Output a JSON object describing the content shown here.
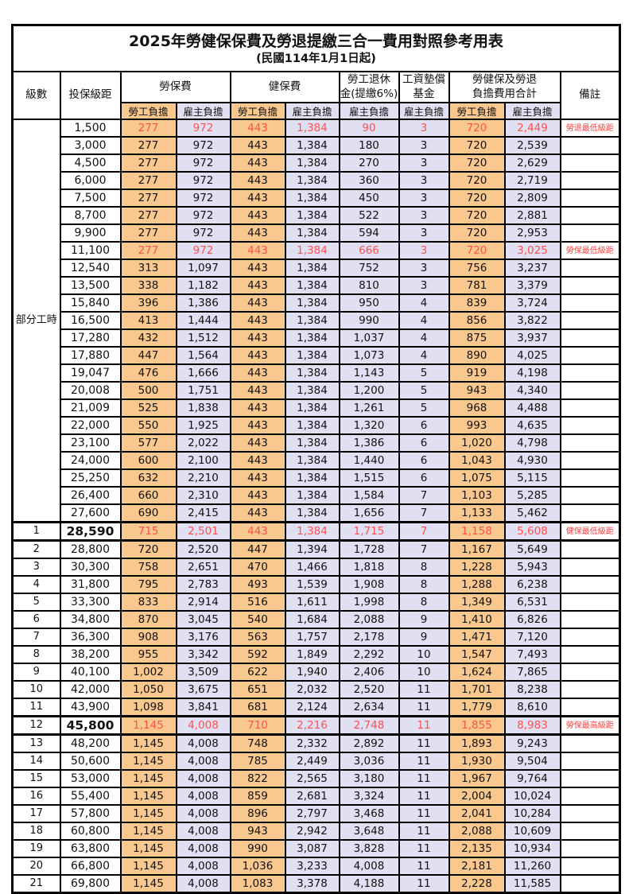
{
  "title": "2025年勞健保保費及勞退提繳三合一費用對照參考用表",
  "subtitle": "(民國114年1月1日起)",
  "header": {
    "level": "級數",
    "bracket": "投保級距",
    "labor_ins": "勞保費",
    "health_ins": "健保費",
    "pension": "勞工退休\n金(提繳6%)",
    "wage_fund": "工資墊償\n基金",
    "total": "勞健保及勞退\n負擔費用合計",
    "employee": "勞工負擔",
    "employer": "雇主負擔",
    "remark": "備註"
  },
  "part_time_label": "部分工時",
  "part_time_rowspan": 23,
  "colors": {
    "employee_bg": "#F8C88E",
    "employer_bg": "#E0E0F2",
    "highlight_red": "#FF5050",
    "remark_red": "#FF4040",
    "border": "#000000"
  },
  "rows": [
    {
      "level": null,
      "bracket": "1,500",
      "values": [
        "277",
        "972",
        "443",
        "1,384",
        "90",
        "3",
        "720",
        "2,449"
      ],
      "remark": "勞退最低級距",
      "red": true,
      "bold": false,
      "thick": false
    },
    {
      "level": null,
      "bracket": "3,000",
      "values": [
        "277",
        "972",
        "443",
        "1,384",
        "180",
        "3",
        "720",
        "2,539"
      ],
      "remark": "",
      "red": false,
      "bold": false,
      "thick": false
    },
    {
      "level": null,
      "bracket": "4,500",
      "values": [
        "277",
        "972",
        "443",
        "1,384",
        "270",
        "3",
        "720",
        "2,629"
      ],
      "remark": "",
      "red": false,
      "bold": false,
      "thick": false
    },
    {
      "level": null,
      "bracket": "6,000",
      "values": [
        "277",
        "972",
        "443",
        "1,384",
        "360",
        "3",
        "720",
        "2,719"
      ],
      "remark": "",
      "red": false,
      "bold": false,
      "thick": false
    },
    {
      "level": null,
      "bracket": "7,500",
      "values": [
        "277",
        "972",
        "443",
        "1,384",
        "450",
        "3",
        "720",
        "2,809"
      ],
      "remark": "",
      "red": false,
      "bold": false,
      "thick": false
    },
    {
      "level": null,
      "bracket": "8,700",
      "values": [
        "277",
        "972",
        "443",
        "1,384",
        "522",
        "3",
        "720",
        "2,881"
      ],
      "remark": "",
      "red": false,
      "bold": false,
      "thick": false
    },
    {
      "level": null,
      "bracket": "9,900",
      "values": [
        "277",
        "972",
        "443",
        "1,384",
        "594",
        "3",
        "720",
        "2,953"
      ],
      "remark": "",
      "red": false,
      "bold": false,
      "thick": false
    },
    {
      "level": null,
      "bracket": "11,100",
      "values": [
        "277",
        "972",
        "443",
        "1,384",
        "666",
        "3",
        "720",
        "3,025"
      ],
      "remark": "勞保最低級距",
      "red": true,
      "bold": false,
      "thick": false
    },
    {
      "level": null,
      "bracket": "12,540",
      "values": [
        "313",
        "1,097",
        "443",
        "1,384",
        "752",
        "3",
        "756",
        "3,237"
      ],
      "remark": "",
      "red": false,
      "bold": false,
      "thick": false
    },
    {
      "level": null,
      "bracket": "13,500",
      "values": [
        "338",
        "1,182",
        "443",
        "1,384",
        "810",
        "3",
        "781",
        "3,379"
      ],
      "remark": "",
      "red": false,
      "bold": false,
      "thick": false
    },
    {
      "level": null,
      "bracket": "15,840",
      "values": [
        "396",
        "1,386",
        "443",
        "1,384",
        "950",
        "4",
        "839",
        "3,724"
      ],
      "remark": "",
      "red": false,
      "bold": false,
      "thick": false
    },
    {
      "level": null,
      "bracket": "16,500",
      "values": [
        "413",
        "1,444",
        "443",
        "1,384",
        "990",
        "4",
        "856",
        "3,822"
      ],
      "remark": "",
      "red": false,
      "bold": false,
      "thick": false
    },
    {
      "level": null,
      "bracket": "17,280",
      "values": [
        "432",
        "1,512",
        "443",
        "1,384",
        "1,037",
        "4",
        "875",
        "3,937"
      ],
      "remark": "",
      "red": false,
      "bold": false,
      "thick": false
    },
    {
      "level": null,
      "bracket": "17,880",
      "values": [
        "447",
        "1,564",
        "443",
        "1,384",
        "1,073",
        "4",
        "890",
        "4,025"
      ],
      "remark": "",
      "red": false,
      "bold": false,
      "thick": false
    },
    {
      "level": null,
      "bracket": "19,047",
      "values": [
        "476",
        "1,666",
        "443",
        "1,384",
        "1,143",
        "5",
        "919",
        "4,198"
      ],
      "remark": "",
      "red": false,
      "bold": false,
      "thick": false
    },
    {
      "level": null,
      "bracket": "20,008",
      "values": [
        "500",
        "1,751",
        "443",
        "1,384",
        "1,200",
        "5",
        "943",
        "4,340"
      ],
      "remark": "",
      "red": false,
      "bold": false,
      "thick": false
    },
    {
      "level": null,
      "bracket": "21,009",
      "values": [
        "525",
        "1,838",
        "443",
        "1,384",
        "1,261",
        "5",
        "968",
        "4,488"
      ],
      "remark": "",
      "red": false,
      "bold": false,
      "thick": false
    },
    {
      "level": null,
      "bracket": "22,000",
      "values": [
        "550",
        "1,925",
        "443",
        "1,384",
        "1,320",
        "6",
        "993",
        "4,635"
      ],
      "remark": "",
      "red": false,
      "bold": false,
      "thick": false
    },
    {
      "level": null,
      "bracket": "23,100",
      "values": [
        "577",
        "2,022",
        "443",
        "1,384",
        "1,386",
        "6",
        "1,020",
        "4,798"
      ],
      "remark": "",
      "red": false,
      "bold": false,
      "thick": false
    },
    {
      "level": null,
      "bracket": "24,000",
      "values": [
        "600",
        "2,100",
        "443",
        "1,384",
        "1,440",
        "6",
        "1,043",
        "4,930"
      ],
      "remark": "",
      "red": false,
      "bold": false,
      "thick": false
    },
    {
      "level": null,
      "bracket": "25,250",
      "values": [
        "632",
        "2,210",
        "443",
        "1,384",
        "1,515",
        "6",
        "1,075",
        "5,115"
      ],
      "remark": "",
      "red": false,
      "bold": false,
      "thick": false
    },
    {
      "level": null,
      "bracket": "26,400",
      "values": [
        "660",
        "2,310",
        "443",
        "1,384",
        "1,584",
        "7",
        "1,103",
        "5,285"
      ],
      "remark": "",
      "red": false,
      "bold": false,
      "thick": false
    },
    {
      "level": null,
      "bracket": "27,600",
      "values": [
        "690",
        "2,415",
        "443",
        "1,384",
        "1,656",
        "7",
        "1,133",
        "5,462"
      ],
      "remark": "",
      "red": false,
      "bold": false,
      "thick": false
    },
    {
      "level": "1",
      "bracket": "28,590",
      "values": [
        "715",
        "2,501",
        "443",
        "1,384",
        "1,715",
        "7",
        "1,158",
        "5,608"
      ],
      "remark": "健保最低級距",
      "red": true,
      "bold": true,
      "thick": true
    },
    {
      "level": "2",
      "bracket": "28,800",
      "values": [
        "720",
        "2,520",
        "447",
        "1,394",
        "1,728",
        "7",
        "1,167",
        "5,649"
      ],
      "remark": "",
      "red": false,
      "bold": false,
      "thick": false
    },
    {
      "level": "3",
      "bracket": "30,300",
      "values": [
        "758",
        "2,651",
        "470",
        "1,466",
        "1,818",
        "8",
        "1,228",
        "5,943"
      ],
      "remark": "",
      "red": false,
      "bold": false,
      "thick": false
    },
    {
      "level": "4",
      "bracket": "31,800",
      "values": [
        "795",
        "2,783",
        "493",
        "1,539",
        "1,908",
        "8",
        "1,288",
        "6,238"
      ],
      "remark": "",
      "red": false,
      "bold": false,
      "thick": false
    },
    {
      "level": "5",
      "bracket": "33,300",
      "values": [
        "833",
        "2,914",
        "516",
        "1,611",
        "1,998",
        "8",
        "1,349",
        "6,531"
      ],
      "remark": "",
      "red": false,
      "bold": false,
      "thick": false
    },
    {
      "level": "6",
      "bracket": "34,800",
      "values": [
        "870",
        "3,045",
        "540",
        "1,684",
        "2,088",
        "9",
        "1,410",
        "6,826"
      ],
      "remark": "",
      "red": false,
      "bold": false,
      "thick": false
    },
    {
      "level": "7",
      "bracket": "36,300",
      "values": [
        "908",
        "3,176",
        "563",
        "1,757",
        "2,178",
        "9",
        "1,471",
        "7,120"
      ],
      "remark": "",
      "red": false,
      "bold": false,
      "thick": false
    },
    {
      "level": "8",
      "bracket": "38,200",
      "values": [
        "955",
        "3,342",
        "592",
        "1,849",
        "2,292",
        "10",
        "1,547",
        "7,493"
      ],
      "remark": "",
      "red": false,
      "bold": false,
      "thick": false
    },
    {
      "level": "9",
      "bracket": "40,100",
      "values": [
        "1,002",
        "3,509",
        "622",
        "1,940",
        "2,406",
        "10",
        "1,624",
        "7,865"
      ],
      "remark": "",
      "red": false,
      "bold": false,
      "thick": false
    },
    {
      "level": "10",
      "bracket": "42,000",
      "values": [
        "1,050",
        "3,675",
        "651",
        "2,032",
        "2,520",
        "11",
        "1,701",
        "8,238"
      ],
      "remark": "",
      "red": false,
      "bold": false,
      "thick": false
    },
    {
      "level": "11",
      "bracket": "43,900",
      "values": [
        "1,098",
        "3,841",
        "681",
        "2,124",
        "2,634",
        "11",
        "1,779",
        "8,610"
      ],
      "remark": "",
      "red": false,
      "bold": false,
      "thick": false
    },
    {
      "level": "12",
      "bracket": "45,800",
      "values": [
        "1,145",
        "4,008",
        "710",
        "2,216",
        "2,748",
        "11",
        "1,855",
        "8,983"
      ],
      "remark": "勞保最高級距",
      "red": true,
      "bold": true,
      "thick": true
    },
    {
      "level": "13",
      "bracket": "48,200",
      "values": [
        "1,145",
        "4,008",
        "748",
        "2,332",
        "2,892",
        "11",
        "1,893",
        "9,243"
      ],
      "remark": "",
      "red": false,
      "bold": false,
      "thick": false
    },
    {
      "level": "14",
      "bracket": "50,600",
      "values": [
        "1,145",
        "4,008",
        "785",
        "2,449",
        "3,036",
        "11",
        "1,930",
        "9,504"
      ],
      "remark": "",
      "red": false,
      "bold": false,
      "thick": false
    },
    {
      "level": "15",
      "bracket": "53,000",
      "values": [
        "1,145",
        "4,008",
        "822",
        "2,565",
        "3,180",
        "11",
        "1,967",
        "9,764"
      ],
      "remark": "",
      "red": false,
      "bold": false,
      "thick": false
    },
    {
      "level": "16",
      "bracket": "55,400",
      "values": [
        "1,145",
        "4,008",
        "859",
        "2,681",
        "3,324",
        "11",
        "2,004",
        "10,024"
      ],
      "remark": "",
      "red": false,
      "bold": false,
      "thick": false
    },
    {
      "level": "17",
      "bracket": "57,800",
      "values": [
        "1,145",
        "4,008",
        "896",
        "2,797",
        "3,468",
        "11",
        "2,041",
        "10,284"
      ],
      "remark": "",
      "red": false,
      "bold": false,
      "thick": false
    },
    {
      "level": "18",
      "bracket": "60,800",
      "values": [
        "1,145",
        "4,008",
        "943",
        "2,942",
        "3,648",
        "11",
        "2,088",
        "10,609"
      ],
      "remark": "",
      "red": false,
      "bold": false,
      "thick": false
    },
    {
      "level": "19",
      "bracket": "63,800",
      "values": [
        "1,145",
        "4,008",
        "990",
        "3,087",
        "3,828",
        "11",
        "2,135",
        "10,934"
      ],
      "remark": "",
      "red": false,
      "bold": false,
      "thick": false
    },
    {
      "level": "20",
      "bracket": "66,800",
      "values": [
        "1,145",
        "4,008",
        "1,036",
        "3,233",
        "4,008",
        "11",
        "2,181",
        "11,260"
      ],
      "remark": "",
      "red": false,
      "bold": false,
      "thick": false
    },
    {
      "level": "21",
      "bracket": "69,800",
      "values": [
        "1,145",
        "4,008",
        "1,083",
        "3,378",
        "4,188",
        "11",
        "2,228",
        "11,585"
      ],
      "remark": "",
      "red": false,
      "bold": false,
      "thick": false
    }
  ]
}
